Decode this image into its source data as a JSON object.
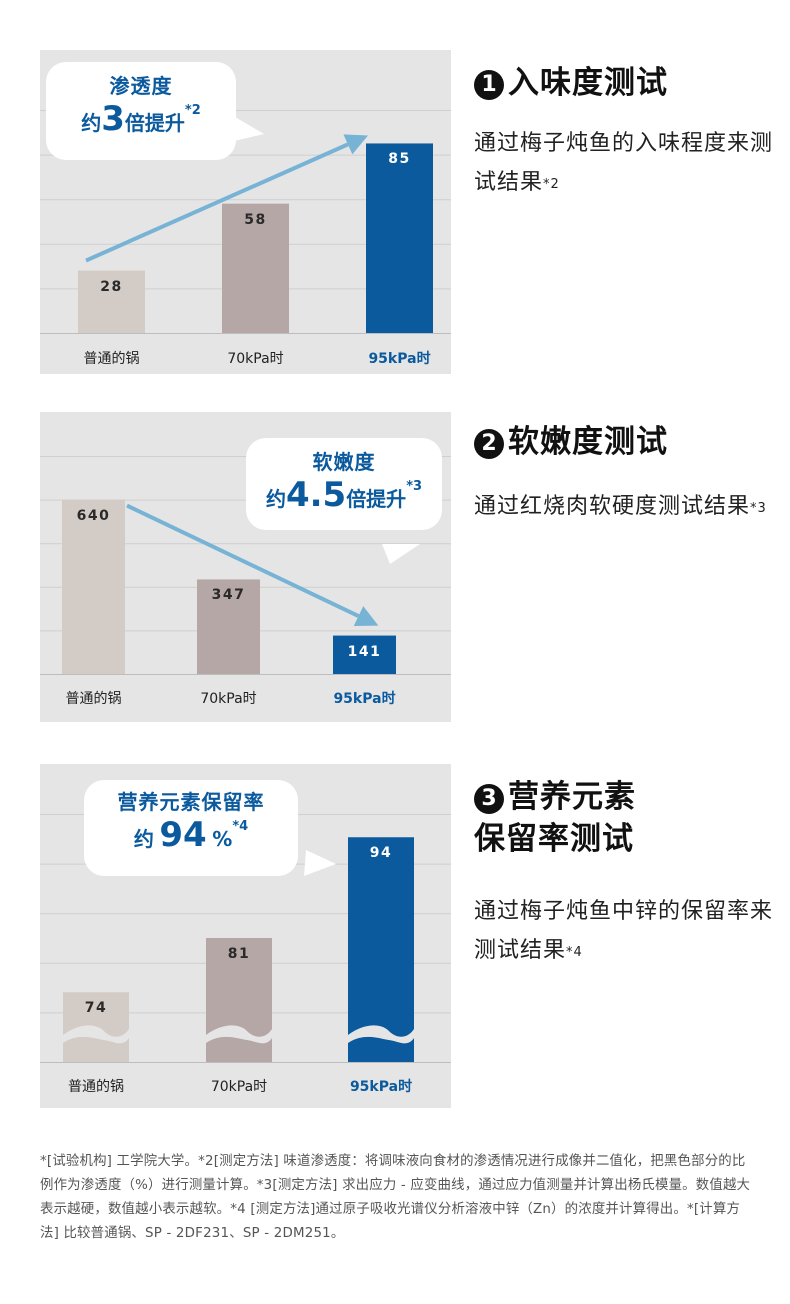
{
  "colors": {
    "panel_bg": "#e5e5e6",
    "grid": "#cfcfd1",
    "bar_normal": "#d3cbc6",
    "bar_70kpa": "#b4a7a5",
    "bar_95kpa": "#0b5a9e",
    "arrow": "#77b3d4",
    "accent_text": "#0b5a9e"
  },
  "sections": [
    {
      "number": "1",
      "title_lines": [
        "入味度测试"
      ],
      "description": "通过梅子炖鱼的入味程度来测试结果",
      "description_note": "*2",
      "bubble": {
        "title": "渗透度",
        "prefix": "约",
        "number": "3",
        "suffix": "倍提升",
        "note": "*2"
      },
      "chart_data": {
        "type": "bar",
        "categories": [
          "普通的锅",
          "70kPa时",
          "95kPa时"
        ],
        "values": [
          28,
          58,
          85
        ],
        "value_labels": [
          "28",
          "58",
          "85"
        ],
        "ylim": [
          0,
          100
        ],
        "highlight_index": 2,
        "trend_arrow": "up",
        "grid": true
      }
    },
    {
      "number": "2",
      "title_lines": [
        "软嫩度测试"
      ],
      "description": "通过红烧肉软硬度测试结果",
      "description_note": "*3",
      "bubble": {
        "title": "软嫩度",
        "prefix": "约",
        "number": "4.5",
        "suffix": "倍提升",
        "note": "*3"
      },
      "chart_data": {
        "type": "bar",
        "categories": [
          "普通的锅",
          "70kPa时",
          "95kPa时"
        ],
        "values": [
          640,
          347,
          141
        ],
        "value_labels": [
          "640",
          "347",
          "141"
        ],
        "ylim": [
          0,
          800
        ],
        "highlight_index": 2,
        "trend_arrow": "down",
        "grid": true
      }
    },
    {
      "number": "3",
      "title_lines": [
        "营养元素",
        "保留率测试"
      ],
      "description": "通过梅子炖鱼中锌的保留率来测试结果",
      "description_note": "*4",
      "bubble": {
        "title": "营养元素保留率",
        "prefix": "约",
        "number": "94",
        "suffix": "%",
        "note": "*4"
      },
      "chart_data": {
        "type": "bar",
        "categories": [
          "普通的锅",
          "70kPa时",
          "95kPa时"
        ],
        "values": [
          74,
          81,
          94
        ],
        "value_labels": [
          "74",
          "81",
          "94"
        ],
        "ylim": [
          65,
          97
        ],
        "axis_break": true,
        "highlight_index": 2,
        "grid": true
      }
    }
  ],
  "footnote": "*[试验机构] 工学院大学。*2[测定方法] 味道渗透度：将调味液向食材的渗透情况进行成像并二值化，把黑色部分的比例作为渗透度（%）进行测量计算。*3[测定方法] 求出应力 - 应变曲线，通过应力值测量并计算出杨氏模量。数值越大表示越硬，数值越小表示越软。*4 [测定方法]通过原子吸收光谱仪分析溶液中锌（Zn）的浓度并计算得出。*[计算方法] 比较普通锅、SP - 2DF231、SP - 2DM251。"
}
